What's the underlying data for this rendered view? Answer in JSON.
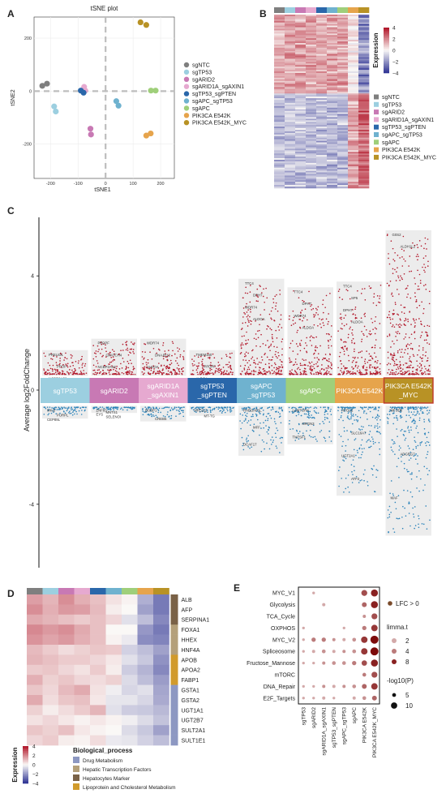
{
  "panels": {
    "A": "A",
    "B": "B",
    "C": "C",
    "D": "D",
    "E": "E"
  },
  "colors": {
    "sgNTC": "#7f7f7f",
    "sgTP53": "#9ccfe0",
    "sgARID2": "#c879b4",
    "sgARID1A_sgAXIN1": "#e6a9d0",
    "sgTP53_sgPTEN": "#2a67aa",
    "sgAPC_sgTP53": "#6fb2cf",
    "sgAPC": "#9fcf7a",
    "PIK3CA E542K": "#e6a44c",
    "PIK3CA E542K_MYC": "#b89225",
    "up_dot": "#b2182b",
    "down_dot": "#2b83ba"
  },
  "tsne": {
    "chart_data": {
      "type": "scatter",
      "title": "tSNE plot",
      "xlabel": "tSNE1",
      "ylabel": "tSNE2",
      "xlim": [
        -260,
        250
      ],
      "ylim": [
        -330,
        280
      ],
      "xticks": [
        -200,
        -100,
        0,
        100,
        200
      ],
      "yticks": [
        -200,
        0,
        200
      ],
      "x_tick_labels": [
        "-200",
        "-100",
        "0",
        "100",
        "200"
      ],
      "y_tick_labels": [
        "-200",
        "0",
        "200"
      ],
      "legend_position": "right",
      "series": [
        {
          "name": "sgNTC",
          "x": [
            -230,
            -213
          ],
          "y": [
            20,
            28
          ]
        },
        {
          "name": "sgTP53",
          "x": [
            -187,
            -181
          ],
          "y": [
            -58,
            -77
          ]
        },
        {
          "name": "sgARID2",
          "x": [
            -55,
            -53
          ],
          "y": [
            -142,
            -164
          ]
        },
        {
          "name": "sgARID1A_sgAXIN1",
          "x": [
            -78,
            -74
          ],
          "y": [
            16,
            2
          ]
        },
        {
          "name": "sgTP53_sgPTEN",
          "x": [
            -90,
            -80
          ],
          "y": [
            2,
            -6
          ]
        },
        {
          "name": "sgAPC_sgTP53",
          "x": [
            39,
            47
          ],
          "y": [
            -38,
            -55
          ]
        },
        {
          "name": "sgAPC",
          "x": [
            165,
            182
          ],
          "y": [
            2,
            2
          ]
        },
        {
          "name": "PIK3CA E542K",
          "x": [
            148,
            164
          ],
          "y": [
            -168,
            -160
          ]
        },
        {
          "name": "PIK3CA E542K_MYC",
          "x": [
            127,
            148
          ],
          "y": [
            260,
            250
          ]
        }
      ]
    }
  },
  "heatmap_b": {
    "chart_data": {
      "type": "heatmap",
      "legend_title": "Expression",
      "scale_ticks": [
        4,
        2,
        0,
        -2,
        -4
      ],
      "scale_labels": [
        "4",
        "2",
        "0",
        "−2",
        "−4"
      ],
      "columns": [
        "sgNTC",
        "sgTP53",
        "sgARID2",
        "sgARID1A_sgAXIN1",
        "sgTP53_sgPTEN",
        "sgAPC_sgTP53",
        "sgAPC",
        "PIK3CA E542K",
        "PIK3CA E542K_MYC"
      ],
      "legend_entries": [
        "sgNTC",
        "sgTP53",
        "sgARID2",
        "sgARID1A_sgAXIN1",
        "sgTP53_sgPTEN",
        "sgAPC_sgTP53",
        "sgAPC",
        "PIK3CA E542K",
        "PIK3CA E542K_MYC"
      ]
    }
  },
  "volcano": {
    "chart_data": {
      "type": "scatter",
      "ylabel": "Average log2FoldChange",
      "ylim": [
        -5,
        6
      ],
      "yticks": [
        4,
        0,
        -4
      ],
      "y_tick_labels": [
        "4",
        "0",
        "-4"
      ],
      "groups": [
        {
          "name": "sgTP53",
          "label": [
            "sgTP53"
          ],
          "up_max": 1.4,
          "down_min": -1.0,
          "up_labels": [
            "PRELID1",
            "PPOP",
            "NCBP2AS2",
            "ALDOA"
          ],
          "down_labels": [
            "MKI3",
            "PURPL",
            "CEP89L"
          ]
        },
        {
          "name": "sgARID2",
          "label": [
            "sgARID2"
          ],
          "up_max": 1.8,
          "down_min": -0.8,
          "up_labels": [
            "PPDPF",
            "GPATCH4",
            "NCBP2AS2",
            "ALDOA"
          ],
          "down_labels": [
            "ZNF83",
            "MNTS1",
            "EYS",
            "SELENOI"
          ]
        },
        {
          "name": "sgARID1A_sgAXIN1",
          "label": [
            "sgARID1A",
            "_sgAXIN1"
          ],
          "up_max": 1.8,
          "down_min": -1.1,
          "up_labels": [
            "WDR74",
            "DNAJB12",
            "ALDOA"
          ],
          "down_labels": [
            "DUBP1",
            "CREB5"
          ]
        },
        {
          "name": "sgTP53_sgPTEN",
          "label": [
            "sgTP53",
            "_sgPTEN"
          ],
          "up_max": 1.4,
          "down_min": -0.9,
          "up_labels": [
            "TMEM160",
            "PPDPF",
            "ALDOA"
          ],
          "down_labels": [
            "NFE2L2",
            "MT-TG"
          ]
        },
        {
          "name": "sgAPC_sgTP53",
          "label": [
            "sgAPC",
            "_sgTP53"
          ],
          "up_max": 3.9,
          "down_min": -2.3,
          "up_labels": [
            "TTC4",
            "DPH7",
            "WDR74",
            "ALDOA"
          ],
          "down_labels": [
            "RABGAP1L",
            "MFF",
            "DCAF17"
          ]
        },
        {
          "name": "sgAPC",
          "label": [
            "sgAPC"
          ],
          "up_max": 3.6,
          "down_min": -1.9,
          "up_labels": [
            "TTC4",
            "DPH7",
            "WDR74",
            "ALDOA"
          ],
          "down_labels": [
            "LAMTOR4",
            "NRGN3",
            "TM7SF1"
          ]
        },
        {
          "name": "PIK3CA E542K",
          "label": [
            "PIK3CA E542K"
          ],
          "up_max": 3.8,
          "down_min": -3.7,
          "up_labels": [
            "TTC4",
            "SP5",
            "DPH7",
            "ALDOA"
          ],
          "down_labels": [
            "APOA2",
            "SLC16A7",
            "UGT2A1",
            "ATF2"
          ]
        },
        {
          "name": "PIK3CA E542K_MYC",
          "label": [
            "PIK3CA E542K",
            "_MYC"
          ],
          "up_max": 5.6,
          "down_min": -5.1,
          "up_labels": [
            "G0S2",
            "ALDH1L2"
          ],
          "down_labels": [
            "MFSD6",
            "ADGRG7",
            "MAF"
          ]
        }
      ]
    }
  },
  "heatmap_d": {
    "chart_data": {
      "type": "heatmap",
      "legend_title": "Expression",
      "scale_labels": [
        "4",
        "2",
        "0",
        "−2",
        "−4"
      ],
      "annotation_title": "Biological_process",
      "genes": [
        "ALB",
        "AFP",
        "SERPINA1",
        "FOXA1",
        "HHEX",
        "HNF4A",
        "APOB",
        "APOA2",
        "FABP1",
        "GSTA1",
        "GSTA2",
        "UGT1A1",
        "UGT2B7",
        "SULT2A1",
        "SULT1E1"
      ],
      "gene_process": [
        2,
        2,
        2,
        1,
        1,
        1,
        3,
        3,
        3,
        0,
        0,
        0,
        0,
        0,
        0
      ],
      "processes": [
        {
          "name": "Drug Metabolism",
          "color": "#8d98c2"
        },
        {
          "name": "Hepatic Transcription Factors",
          "color": "#b4a07a"
        },
        {
          "name": "Hepatocytes Marker",
          "color": "#7a6247"
        },
        {
          "name": "Lipoprotein and Cholesterol Metabolism",
          "color": "#d19b2c"
        }
      ],
      "values": [
        [
          1.6,
          1.2,
          1.9,
          1.3,
          1.0,
          0.4,
          0.1,
          -1.5,
          -2.6
        ],
        [
          1.9,
          1.3,
          1.7,
          1.6,
          1.1,
          0.2,
          0.0,
          -1.8,
          -2.6
        ],
        [
          1.4,
          1.2,
          1.0,
          0.8,
          1.0,
          0.6,
          -0.5,
          -1.2,
          -2.3
        ],
        [
          2.0,
          1.7,
          1.9,
          1.4,
          1.0,
          0.0,
          0.0,
          -2.0,
          -2.6
        ],
        [
          1.8,
          1.5,
          1.7,
          1.3,
          1.0,
          0.1,
          -0.3,
          -2.2,
          -2.4
        ],
        [
          1.1,
          0.8,
          0.5,
          0.7,
          0.9,
          0.8,
          -0.8,
          -1.2,
          -1.8
        ],
        [
          1.2,
          1.0,
          0.8,
          0.8,
          0.6,
          0.3,
          -0.5,
          -1.0,
          -2.1
        ],
        [
          0.8,
          0.9,
          0.6,
          0.4,
          0.8,
          0.2,
          -0.9,
          -1.4,
          -2.3
        ],
        [
          1.3,
          0.7,
          0.9,
          0.6,
          0.5,
          0.7,
          -0.6,
          -1.2,
          -1.9
        ],
        [
          0.9,
          0.6,
          1.1,
          1.4,
          0.4,
          -0.2,
          -0.7,
          -0.5,
          -1.7
        ],
        [
          1.4,
          0.5,
          0.9,
          1.0,
          0.3,
          -0.4,
          -0.4,
          -0.7,
          -1.6
        ],
        [
          0.7,
          0.2,
          0.5,
          0.8,
          1.2,
          -0.5,
          -0.9,
          -1.0,
          -1.3
        ],
        [
          0.4,
          0.6,
          0.3,
          0.1,
          0.3,
          0.1,
          -0.2,
          -0.6,
          -1.1
        ],
        [
          0.9,
          0.7,
          1.0,
          0.3,
          0.1,
          0.0,
          -0.6,
          -1.0,
          -1.8
        ],
        [
          0.6,
          0.8,
          0.2,
          0.1,
          0.5,
          -0.3,
          -0.4,
          -0.8,
          -1.2
        ]
      ]
    }
  },
  "dotplot": {
    "chart_data": {
      "type": "scatter",
      "pathways": [
        "MYC_V1",
        "Glycolysis",
        "TCA_Cycle",
        "OXPHOS",
        "MYC_V2",
        "Spliceosome",
        "Fructose_Mannose",
        "mTORC",
        "DNA_Repair",
        "E2F_Targets"
      ],
      "groups": [
        "sgTP53",
        "sgARID2",
        "sgARID1A_sgAXIN1",
        "sgTP53_sgPTEN",
        "sgAPC_sgTP53",
        "sgAPC",
        "PIK3CA E542K",
        "PIK3CA E542K_MYC"
      ],
      "legend_lfc": "LFC > 0",
      "legend_limma_title": "limma.t",
      "limma_ticks": [
        2,
        4,
        8
      ],
      "limma_labels": [
        "2",
        "4",
        "8"
      ],
      "legend_p_title": "-log10(P)",
      "p_ticks": [
        5,
        10
      ],
      "p_labels": [
        "5",
        "10"
      ],
      "points": [
        [
          0,
          1,
          2,
          2
        ],
        [
          0,
          6,
          6,
          8
        ],
        [
          0,
          7,
          8,
          10
        ],
        [
          1,
          2,
          2,
          3
        ],
        [
          1,
          6,
          5,
          6
        ],
        [
          1,
          7,
          8,
          10
        ],
        [
          2,
          6,
          3,
          3
        ],
        [
          2,
          7,
          6,
          8
        ],
        [
          3,
          0,
          2,
          2
        ],
        [
          3,
          4,
          2,
          2
        ],
        [
          3,
          6,
          4,
          5
        ],
        [
          3,
          7,
          7,
          9
        ],
        [
          4,
          0,
          2,
          2
        ],
        [
          4,
          1,
          4,
          5
        ],
        [
          4,
          2,
          4,
          5
        ],
        [
          4,
          3,
          3,
          3
        ],
        [
          4,
          4,
          2,
          3
        ],
        [
          4,
          5,
          3,
          4
        ],
        [
          4,
          6,
          7,
          9
        ],
        [
          4,
          7,
          9,
          12
        ],
        [
          5,
          0,
          2,
          2
        ],
        [
          5,
          1,
          2,
          3
        ],
        [
          5,
          2,
          3,
          4
        ],
        [
          5,
          3,
          2,
          3
        ],
        [
          5,
          4,
          3,
          3
        ],
        [
          5,
          5,
          3,
          4
        ],
        [
          5,
          6,
          7,
          9
        ],
        [
          5,
          7,
          9,
          12
        ],
        [
          6,
          0,
          2,
          2
        ],
        [
          6,
          1,
          2,
          2
        ],
        [
          6,
          2,
          3,
          3
        ],
        [
          6,
          3,
          3,
          4
        ],
        [
          6,
          4,
          3,
          4
        ],
        [
          6,
          5,
          4,
          5
        ],
        [
          6,
          6,
          6,
          7
        ],
        [
          6,
          7,
          8,
          10
        ],
        [
          7,
          6,
          4,
          4
        ],
        [
          7,
          7,
          6,
          8
        ],
        [
          8,
          0,
          2,
          2
        ],
        [
          8,
          1,
          2,
          2
        ],
        [
          8,
          2,
          3,
          3
        ],
        [
          8,
          3,
          2,
          3
        ],
        [
          8,
          4,
          3,
          3
        ],
        [
          8,
          5,
          3,
          4
        ],
        [
          8,
          6,
          5,
          6
        ],
        [
          8,
          7,
          7,
          9
        ],
        [
          9,
          0,
          2,
          2
        ],
        [
          9,
          1,
          2,
          2
        ],
        [
          9,
          2,
          2,
          3
        ],
        [
          9,
          3,
          2,
          2
        ],
        [
          9,
          5,
          2,
          3
        ],
        [
          9,
          6,
          3,
          4
        ],
        [
          9,
          7,
          5,
          6
        ]
      ]
    }
  }
}
